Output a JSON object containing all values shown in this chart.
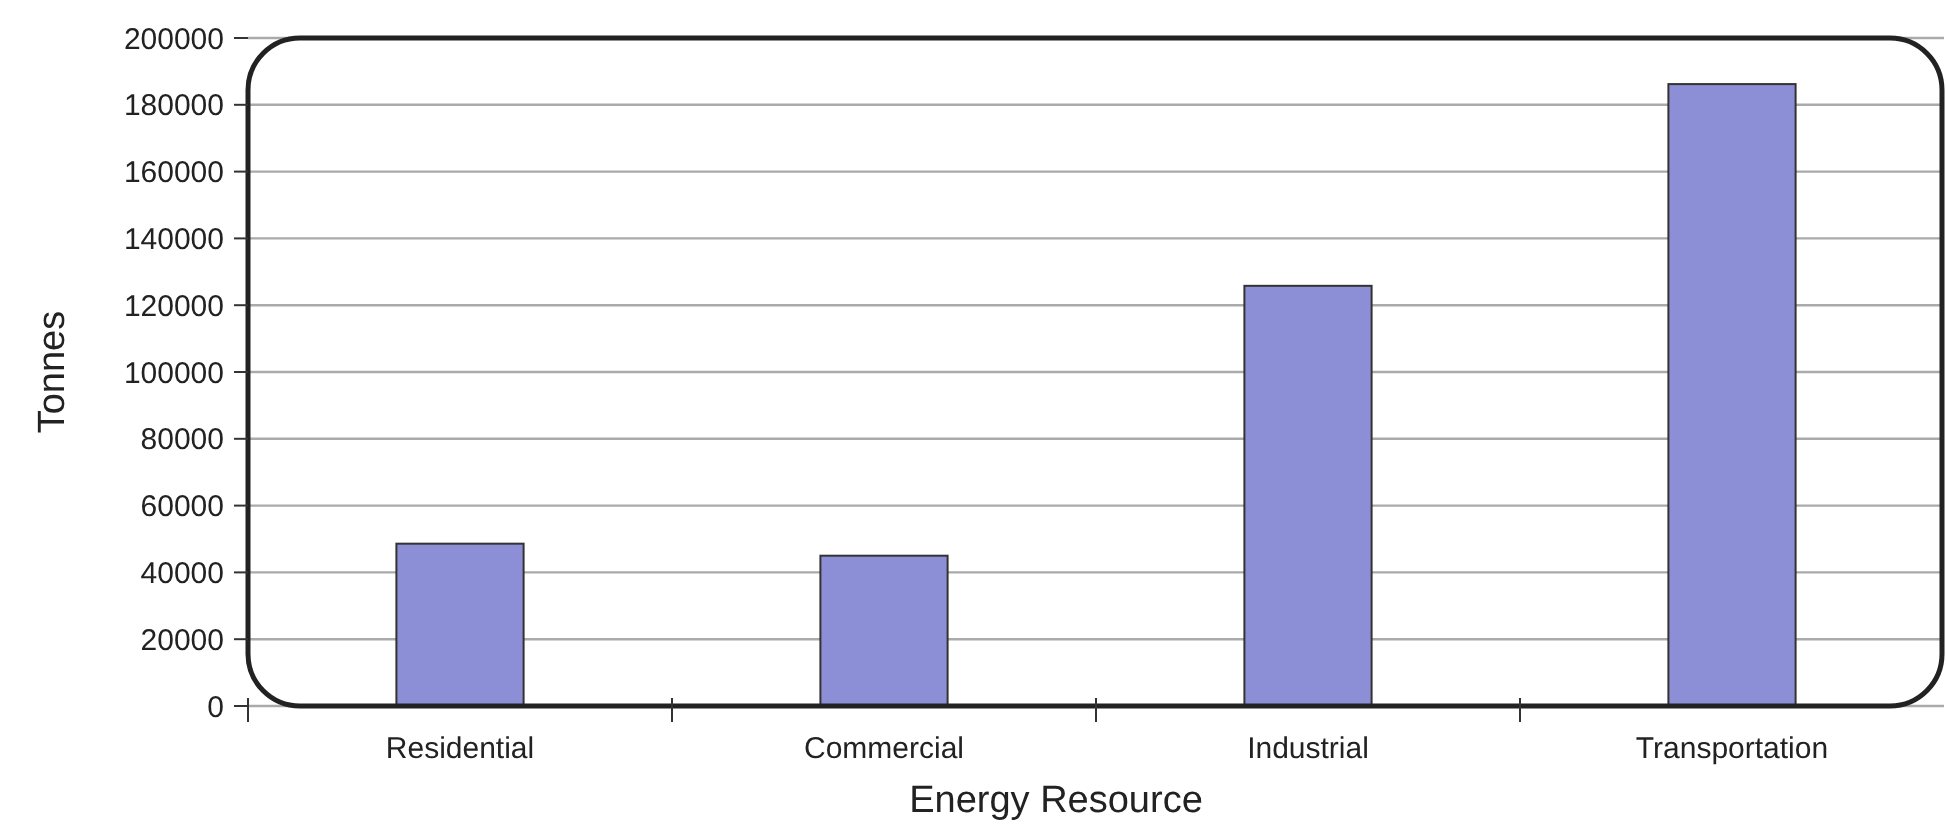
{
  "chart_data": {
    "type": "bar",
    "xlabel": "Energy Resource",
    "ylabel": "Tonnes",
    "categories": [
      "Residential",
      "Commercial",
      "Industrial",
      "Transportation"
    ],
    "values": [
      48600,
      45000,
      125800,
      186200
    ],
    "color": "#8c8fd6",
    "ylim": [
      0,
      200000
    ],
    "yticks": [
      0,
      20000,
      40000,
      60000,
      80000,
      100000,
      120000,
      140000,
      160000,
      180000,
      200000
    ],
    "grid": "y"
  }
}
